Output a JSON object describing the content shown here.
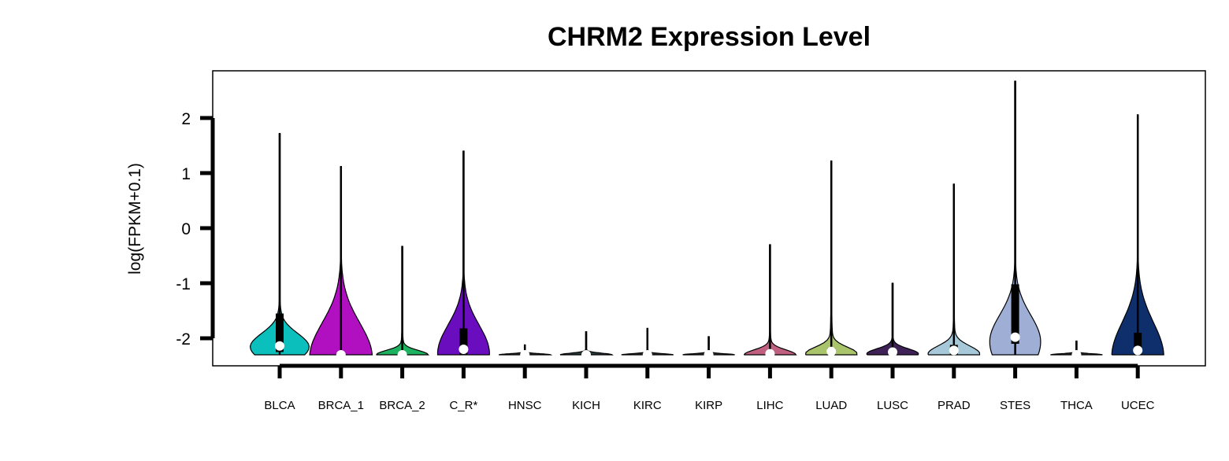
{
  "chart_data": {
    "type": "violin",
    "title": "CHRM2 Expression Level",
    "xlabel": "",
    "ylabel": "log(FPKM+0.1)",
    "ylim": [
      -2.5,
      2.8
    ],
    "yticks": [
      -2,
      -1,
      0,
      1,
      2
    ],
    "grid": false,
    "legend": "none",
    "categories": [
      "BLCA",
      "BRCA_1",
      "BRCA_2",
      "C_R*",
      "HNSC",
      "KICH",
      "KIRC",
      "KIRP",
      "LIHC",
      "LUAD",
      "LUSC",
      "PRAD",
      "STES",
      "THCA",
      "UCEC"
    ],
    "series": [
      {
        "category": "BLCA",
        "color": "#0BBFBC",
        "min": -2.3,
        "max": 1.72,
        "median": -2.14,
        "q1": -2.25,
        "q3": -1.55,
        "maxWidth": 0.46,
        "peak": -2.15,
        "spread": 0.24
      },
      {
        "category": "BRCA_1",
        "color": "#B010C0",
        "min": -2.3,
        "max": 1.12,
        "median": -2.3,
        "q1": -2.3,
        "q3": -2.28,
        "maxWidth": 0.48,
        "peak": -2.3,
        "spread": 0.6
      },
      {
        "category": "BRCA_2",
        "color": "#1DB25F",
        "min": -2.3,
        "max": -0.33,
        "median": -2.3,
        "q1": -2.3,
        "q3": -2.28,
        "maxWidth": 0.4,
        "peak": -2.3,
        "spread": 0.08
      },
      {
        "category": "C_R*",
        "color": "#6A0DBF",
        "min": -2.3,
        "max": 1.4,
        "median": -2.2,
        "q1": -2.3,
        "q3": -1.82,
        "maxWidth": 0.4,
        "peak": -2.25,
        "spread": 0.5
      },
      {
        "category": "HNSC",
        "color": "#333333",
        "min": -2.3,
        "max": -2.12,
        "median": -2.3,
        "q1": -2.3,
        "q3": -2.3,
        "maxWidth": 0.4,
        "peak": -2.3,
        "spread": 0.02
      },
      {
        "category": "KICH",
        "color": "#2A3A3A",
        "min": -2.3,
        "max": -1.88,
        "median": -2.3,
        "q1": -2.3,
        "q3": -2.3,
        "maxWidth": 0.4,
        "peak": -2.3,
        "spread": 0.03
      },
      {
        "category": "KIRC",
        "color": "#333333",
        "min": -2.3,
        "max": -1.82,
        "median": -2.3,
        "q1": -2.3,
        "q3": -2.3,
        "maxWidth": 0.4,
        "peak": -2.3,
        "spread": 0.02
      },
      {
        "category": "KIRP",
        "color": "#333333",
        "min": -2.3,
        "max": -1.97,
        "median": -2.3,
        "q1": -2.3,
        "q3": -2.3,
        "maxWidth": 0.4,
        "peak": -2.3,
        "spread": 0.02
      },
      {
        "category": "LIHC",
        "color": "#C06080",
        "min": -2.3,
        "max": -0.3,
        "median": -2.28,
        "q1": -2.3,
        "q3": -2.25,
        "maxWidth": 0.4,
        "peak": -2.3,
        "spread": 0.09
      },
      {
        "category": "LUAD",
        "color": "#A9C46A",
        "min": -2.3,
        "max": 1.22,
        "median": -2.24,
        "q1": -2.3,
        "q3": -2.18,
        "maxWidth": 0.4,
        "peak": -2.28,
        "spread": 0.12
      },
      {
        "category": "LUSC",
        "color": "#3E2257",
        "min": -2.3,
        "max": -1.0,
        "median": -2.25,
        "q1": -2.3,
        "q3": -2.2,
        "maxWidth": 0.4,
        "peak": -2.28,
        "spread": 0.09
      },
      {
        "category": "PRAD",
        "color": "#A6C8D8",
        "min": -2.3,
        "max": 0.8,
        "median": -2.22,
        "q1": -2.3,
        "q3": -2.12,
        "maxWidth": 0.4,
        "peak": -2.28,
        "spread": 0.14
      },
      {
        "category": "STES",
        "color": "#9EAED4",
        "min": -2.3,
        "max": 2.67,
        "median": -1.98,
        "q1": -2.1,
        "q3": -1.02,
        "maxWidth": 0.4,
        "peak": -2.05,
        "spread": 0.48
      },
      {
        "category": "THCA",
        "color": "#333333",
        "min": -2.3,
        "max": -2.05,
        "median": -2.3,
        "q1": -2.3,
        "q3": -2.3,
        "maxWidth": 0.4,
        "peak": -2.3,
        "spread": 0.02
      },
      {
        "category": "UCEC",
        "color": "#0F2F6C",
        "min": -2.3,
        "max": 2.06,
        "median": -2.22,
        "q1": -2.3,
        "q3": -1.9,
        "maxWidth": 0.4,
        "peak": -2.3,
        "spread": 0.6
      }
    ]
  }
}
